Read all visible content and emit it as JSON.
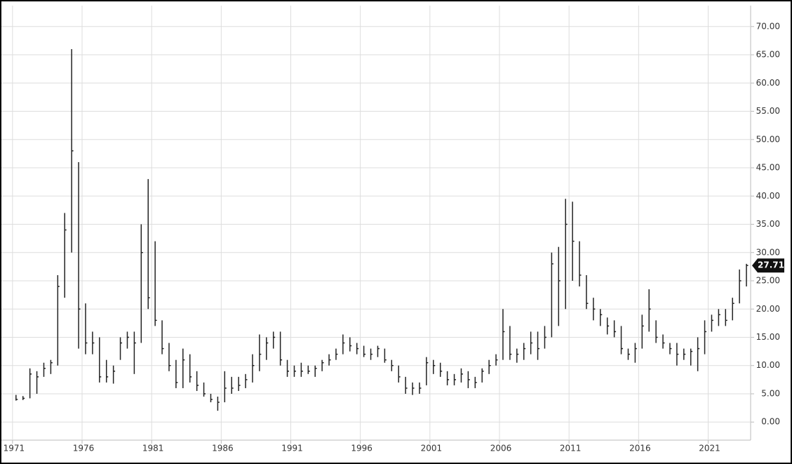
{
  "chart_data": {
    "type": "hlc",
    "x": [
      1971.25,
      1971.75,
      1972.25,
      1972.75,
      1973.25,
      1973.75,
      1974.25,
      1974.75,
      1975.25,
      1975.75,
      1976.25,
      1976.75,
      1977.25,
      1977.75,
      1978.25,
      1978.75,
      1979.25,
      1979.75,
      1980.25,
      1980.75,
      1981.25,
      1981.75,
      1982.25,
      1982.75,
      1983.25,
      1983.75,
      1984.25,
      1984.75,
      1985.25,
      1985.75,
      1986.25,
      1986.75,
      1987.25,
      1987.75,
      1988.25,
      1988.75,
      1989.25,
      1989.75,
      1990.25,
      1990.75,
      1991.25,
      1991.75,
      1992.25,
      1992.75,
      1993.25,
      1993.75,
      1994.25,
      1994.75,
      1995.25,
      1995.75,
      1996.25,
      1996.75,
      1997.25,
      1997.75,
      1998.25,
      1998.75,
      1999.25,
      1999.75,
      2000.25,
      2000.75,
      2001.25,
      2001.75,
      2002.25,
      2002.75,
      2003.25,
      2003.75,
      2004.25,
      2004.75,
      2005.25,
      2005.75,
      2006.25,
      2006.75,
      2007.25,
      2007.75,
      2008.25,
      2008.75,
      2009.25,
      2009.75,
      2010.25,
      2010.75,
      2011.25,
      2011.75,
      2012.25,
      2012.75,
      2013.25,
      2013.75,
      2014.25,
      2014.75,
      2015.25,
      2015.75,
      2016.25,
      2016.75,
      2017.25,
      2017.75,
      2018.25,
      2018.75,
      2019.25,
      2019.75,
      2020.25,
      2020.75,
      2021.25,
      2021.75,
      2022.25,
      2022.75,
      2023.25,
      2023.75
    ],
    "high": [
      4.8,
      4.6,
      9.5,
      9,
      10.5,
      11,
      26,
      37,
      66,
      46,
      21,
      16,
      15,
      11,
      10,
      15,
      16,
      16,
      35,
      43,
      32,
      18,
      14,
      11,
      13,
      12,
      9,
      7,
      5,
      4.5,
      9,
      8,
      8,
      8.5,
      12,
      15.5,
      15,
      16,
      16,
      11,
      10,
      10.5,
      10,
      10,
      11,
      12,
      13,
      15.5,
      15,
      14,
      13.5,
      13,
      13.5,
      13,
      11,
      10,
      8,
      7,
      7,
      11.5,
      11,
      10.5,
      9,
      8.5,
      9.5,
      9,
      8,
      9.5,
      11,
      12,
      20,
      17,
      13,
      14,
      16,
      16,
      17,
      30,
      31,
      39.5,
      39,
      32,
      26,
      22,
      20,
      18.5,
      18,
      17,
      13,
      14,
      19,
      23.5,
      18,
      15.5,
      14,
      14,
      13,
      13,
      15,
      18,
      19,
      20,
      20,
      22,
      27,
      28
    ],
    "low": [
      3.8,
      3.9,
      4.2,
      5,
      8,
      8.5,
      10,
      22,
      30,
      13,
      12,
      12,
      7,
      7,
      6.8,
      11,
      13,
      8.5,
      14,
      20,
      17,
      12,
      9,
      6,
      6,
      7,
      5.5,
      4.5,
      3.5,
      2,
      3.5,
      5,
      5.5,
      6,
      7,
      9,
      11,
      13,
      10,
      8,
      8,
      8,
      8.5,
      8,
      9,
      10,
      11,
      12,
      12.5,
      12,
      11.5,
      11,
      11.5,
      10.5,
      9,
      7,
      5,
      4.8,
      5,
      6.5,
      8.5,
      8,
      6.5,
      6.5,
      7,
      6,
      6,
      7,
      8.5,
      10,
      11,
      11,
      10.5,
      11,
      12,
      11,
      13,
      15,
      17,
      20,
      25,
      24,
      20,
      18,
      17,
      15.5,
      15,
      12,
      11,
      10.5,
      13,
      16,
      14,
      13,
      12,
      10,
      11,
      10,
      9,
      12,
      16,
      17,
      17,
      18,
      21,
      24
    ],
    "close": [
      4,
      4.2,
      8.5,
      8,
      9.5,
      10.5,
      24,
      34,
      48,
      20,
      14,
      14,
      8,
      8,
      9,
      14,
      15,
      14,
      30,
      22,
      18,
      13,
      10,
      7,
      11,
      8,
      6.5,
      5,
      4,
      3.5,
      6,
      6,
      6.5,
      7.5,
      10,
      12,
      14,
      15,
      11,
      9,
      9,
      9,
      9,
      9.5,
      10.5,
      11,
      12,
      14,
      13.5,
      13,
      12,
      12,
      13,
      11,
      10,
      8,
      6,
      6,
      6,
      10.5,
      10,
      9,
      7.5,
      7.5,
      8.5,
      7.5,
      7,
      9,
      10,
      11,
      16,
      12,
      12,
      13,
      14,
      13,
      15,
      28,
      25,
      35,
      32,
      26,
      21,
      20,
      19,
      17,
      16,
      13,
      12,
      13,
      17,
      20,
      15,
      14,
      13,
      12,
      12,
      12.5,
      13,
      16,
      18,
      19,
      18,
      21,
      25,
      27.71
    ],
    "color": "#222222",
    "xlim": [
      1970.1,
      2024.05
    ],
    "xticks": [
      1971,
      1976,
      1981,
      1986,
      1991,
      1996,
      2001,
      2006,
      2011,
      2016,
      2021
    ],
    "ylim": [
      -3.2,
      73.7
    ],
    "yticks": [
      {
        "value": 0,
        "label": "0.00"
      },
      {
        "value": 5,
        "label": "5.00"
      },
      {
        "value": 10,
        "label": "10.00"
      },
      {
        "value": 15,
        "label": "15.00"
      },
      {
        "value": 20,
        "label": "20.00"
      },
      {
        "value": 25,
        "label": "25.00"
      },
      {
        "value": 30,
        "label": "30.00"
      },
      {
        "value": 35,
        "label": "35.00"
      },
      {
        "value": 40,
        "label": "40.00"
      },
      {
        "value": 45,
        "label": "45.00"
      },
      {
        "value": 50,
        "label": "50.00"
      },
      {
        "value": 55,
        "label": "55.00"
      },
      {
        "value": 60,
        "label": "60.00"
      },
      {
        "value": 65,
        "label": "65.00"
      },
      {
        "value": 70,
        "label": "70.00"
      }
    ],
    "grid": true
  }
}
